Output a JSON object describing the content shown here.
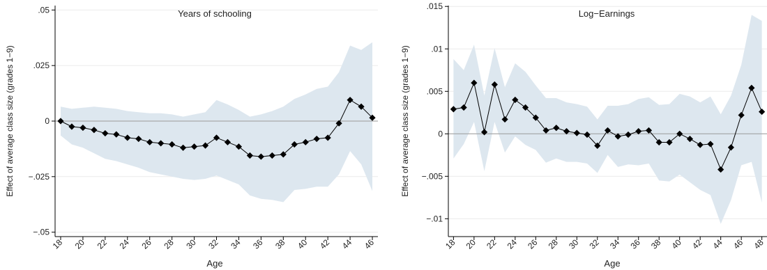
{
  "chart_data": [
    {
      "type": "line",
      "title": "Years of schooling",
      "xlabel": "Age",
      "ylabel": "Effect of average class size (grades 1−9)",
      "xlim": [
        17.5,
        46.5
      ],
      "ylim": [
        -0.052,
        0.052
      ],
      "x_ticks": [
        18,
        20,
        22,
        24,
        26,
        28,
        30,
        32,
        34,
        36,
        38,
        40,
        42,
        44,
        46
      ],
      "y_ticks": [
        {
          "value": 0.05,
          "label": ".05"
        },
        {
          "value": 0.025,
          "label": ".025"
        },
        {
          "value": 0,
          "label": "0"
        },
        {
          "value": -0.025,
          "label": "−.025"
        },
        {
          "value": -0.05,
          "label": "−.05"
        }
      ],
      "reference_line": 0,
      "colors": {
        "band": "#dde7ef",
        "line": "#000000",
        "ref": "#9a9a9a"
      },
      "series": [
        {
          "x": [
            18,
            19,
            20,
            21,
            22,
            23,
            24,
            25,
            26,
            27,
            28,
            29,
            30,
            31,
            32,
            33,
            34,
            35,
            36,
            37,
            38,
            39,
            40,
            41,
            42,
            43,
            44,
            45,
            46
          ],
          "values": [
            0.0,
            -0.0025,
            -0.003,
            -0.004,
            -0.0055,
            -0.006,
            -0.0075,
            -0.008,
            -0.0095,
            -0.01,
            -0.0105,
            -0.012,
            -0.0115,
            -0.011,
            -0.0075,
            -0.0095,
            -0.0115,
            -0.0155,
            -0.016,
            -0.0155,
            -0.015,
            -0.0105,
            -0.0095,
            -0.008,
            -0.0075,
            -0.001,
            0.0095,
            0.0065,
            0.0015
          ],
          "ci_upper": [
            0.0065,
            0.0055,
            0.006,
            0.0065,
            0.006,
            0.0055,
            0.0045,
            0.004,
            0.0035,
            0.0035,
            0.003,
            0.002,
            0.003,
            0.004,
            0.0095,
            0.0075,
            0.005,
            0.002,
            0.003,
            0.0045,
            0.0065,
            0.01,
            0.012,
            0.0145,
            0.0155,
            0.022,
            0.034,
            0.032,
            0.0355
          ],
          "ci_lower": [
            -0.0065,
            -0.0105,
            -0.012,
            -0.0145,
            -0.017,
            -0.018,
            -0.0195,
            -0.021,
            -0.023,
            -0.024,
            -0.025,
            -0.026,
            -0.0265,
            -0.026,
            -0.0245,
            -0.0265,
            -0.0285,
            -0.0335,
            -0.035,
            -0.0355,
            -0.0365,
            -0.031,
            -0.0305,
            -0.0295,
            -0.0295,
            -0.024,
            -0.0135,
            -0.0195,
            -0.0315
          ]
        }
      ]
    },
    {
      "type": "line",
      "title": "Log−Earnings",
      "xlabel": "Age",
      "ylabel": "Effect of average class size (grades 1−9)",
      "xlim": [
        17.5,
        48.5
      ],
      "ylim": [
        -0.0121,
        0.0151
      ],
      "x_ticks": [
        18,
        20,
        22,
        24,
        26,
        28,
        30,
        32,
        34,
        36,
        38,
        40,
        42,
        44,
        46,
        48
      ],
      "y_ticks": [
        {
          "value": 0.015,
          "label": ".015"
        },
        {
          "value": 0.01,
          "label": ".01"
        },
        {
          "value": 0.005,
          "label": ".005"
        },
        {
          "value": 0,
          "label": "0"
        },
        {
          "value": -0.005,
          "label": "−.005"
        },
        {
          "value": -0.01,
          "label": "−.01"
        }
      ],
      "reference_line": 0,
      "colors": {
        "band": "#dde7ef",
        "line": "#000000",
        "ref": "#9a9a9a"
      },
      "series": [
        {
          "x": [
            18,
            19,
            20,
            21,
            22,
            23,
            24,
            25,
            26,
            27,
            28,
            29,
            30,
            31,
            32,
            33,
            34,
            35,
            36,
            37,
            38,
            39,
            40,
            41,
            42,
            43,
            44,
            45,
            46,
            47,
            48
          ],
          "values": [
            0.0029,
            0.0031,
            0.006,
            0.0002,
            0.0058,
            0.0017,
            0.004,
            0.0031,
            0.0019,
            0.0004,
            0.0007,
            0.0003,
            0.0001,
            -0.0001,
            -0.0014,
            0.0004,
            -0.0003,
            -0.0001,
            0.0003,
            0.0004,
            -0.001,
            -0.001,
            0.0,
            -0.0006,
            -0.0013,
            -0.0012,
            -0.0042,
            -0.0016,
            0.0022,
            0.0054,
            0.0026
          ],
          "ci_upper": [
            0.0088,
            0.0075,
            0.0105,
            0.0045,
            0.0101,
            0.0055,
            0.0083,
            0.0073,
            0.0057,
            0.0042,
            0.0042,
            0.0037,
            0.0035,
            0.0032,
            0.0017,
            0.0033,
            0.0033,
            0.0035,
            0.0041,
            0.0043,
            0.0034,
            0.0035,
            0.0047,
            0.0044,
            0.0037,
            0.0044,
            0.0023,
            0.0045,
            0.0081,
            0.014,
            0.0133
          ],
          "ci_lower": [
            -0.0029,
            -0.0012,
            0.0014,
            -0.0044,
            0.0014,
            -0.0022,
            -0.0003,
            -0.0013,
            -0.0019,
            -0.0034,
            -0.0029,
            -0.0033,
            -0.0033,
            -0.0035,
            -0.0046,
            -0.0025,
            -0.0039,
            -0.0036,
            -0.0037,
            -0.0035,
            -0.0055,
            -0.0056,
            -0.0048,
            -0.0057,
            -0.0066,
            -0.0072,
            -0.0106,
            -0.0078,
            -0.0037,
            -0.0033,
            -0.0081
          ]
        }
      ]
    }
  ]
}
